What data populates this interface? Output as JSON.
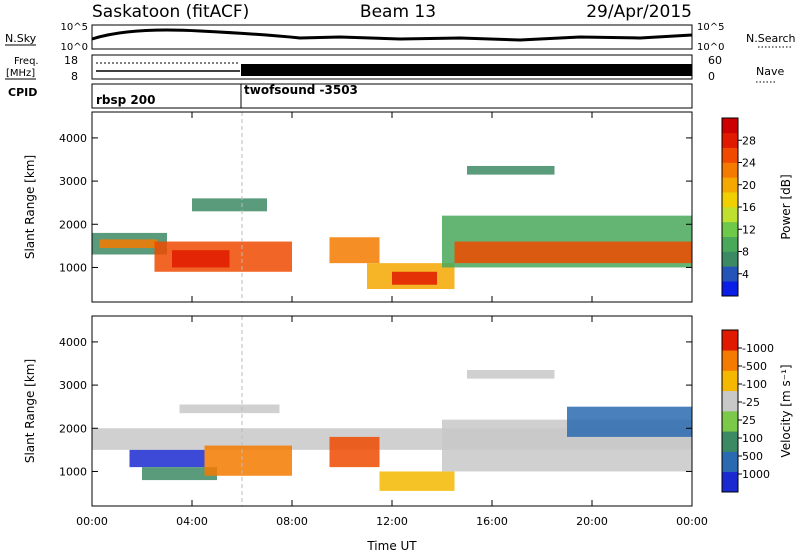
{
  "header": {
    "title": "Saskatoon (fitACF)",
    "beam": "Beam 13",
    "date": "29/Apr/2015"
  },
  "status_panels": {
    "nsky_label": "N.Sky",
    "nsky_ticks": [
      "10^5",
      "10^0"
    ],
    "nsearch_label": "N.Search",
    "nsearch_ticks": [
      "10^5",
      "10^0"
    ],
    "freq_label_1": "Freq.",
    "freq_label_2": "[MHz]",
    "freq_ticks": [
      "18",
      "8"
    ],
    "nave_label": "Nave",
    "nave_ticks": [
      "60",
      "0"
    ],
    "cpid_label": "CPID",
    "cpid_segments": [
      {
        "name": "rbsp 200",
        "start_hour": 0
      },
      {
        "name": "twofsound -3503",
        "start_hour": 6
      }
    ]
  },
  "chart_data": [
    {
      "type": "heatmap",
      "ylabel": "Slant Range [km]",
      "ylim": [
        200,
        4600
      ],
      "yticks": [
        1000,
        2000,
        3000,
        4000
      ],
      "xlim": [
        0,
        24
      ],
      "colorbar": {
        "label": "Power [dB]",
        "ticks": [
          "4",
          "8",
          "12",
          "16",
          "20",
          "24",
          "28"
        ],
        "colors": [
          "#0a1ee6",
          "#2454b8",
          "#3c8a64",
          "#49a85a",
          "#6ec94a",
          "#c0e030",
          "#f0d000",
          "#f5a800",
          "#f47a00",
          "#ef4a00",
          "#e01a00",
          "#cc0000"
        ]
      },
      "bands": [
        {
          "t0": 0.0,
          "t1": 3.0,
          "r0": 1300,
          "r1": 1800,
          "color": "#3c8a64"
        },
        {
          "t0": 0.3,
          "t1": 2.6,
          "r0": 1450,
          "r1": 1650,
          "color": "#f47a00"
        },
        {
          "t0": 2.5,
          "t1": 8.0,
          "r0": 900,
          "r1": 1600,
          "color": "#ef4a00"
        },
        {
          "t0": 3.2,
          "t1": 5.5,
          "r0": 1000,
          "r1": 1400,
          "color": "#e01a00"
        },
        {
          "t0": 9.5,
          "t1": 11.5,
          "r0": 1100,
          "r1": 1700,
          "color": "#f47a00"
        },
        {
          "t0": 11.0,
          "t1": 14.5,
          "r0": 500,
          "r1": 1100,
          "color": "#f5a800"
        },
        {
          "t0": 12.0,
          "t1": 13.8,
          "r0": 600,
          "r1": 900,
          "color": "#e01a00"
        },
        {
          "t0": 14.0,
          "t1": 24.0,
          "r0": 1000,
          "r1": 2200,
          "color": "#49a85a"
        },
        {
          "t0": 14.5,
          "t1": 24.0,
          "r0": 1100,
          "r1": 1600,
          "color": "#ef4a00"
        },
        {
          "t0": 4.0,
          "t1": 7.0,
          "r0": 2300,
          "r1": 2600,
          "color": "#3c8a64"
        },
        {
          "t0": 15.0,
          "t1": 18.5,
          "r0": 3150,
          "r1": 3350,
          "color": "#3c8a64"
        }
      ]
    },
    {
      "type": "heatmap",
      "ylabel": "Slant Range [km]",
      "ylim": [
        200,
        4600
      ],
      "yticks": [
        1000,
        2000,
        3000,
        4000
      ],
      "xlim": [
        0,
        24
      ],
      "xlabel": "Time UT",
      "xticks": [
        "00:00",
        "04:00",
        "08:00",
        "12:00",
        "16:00",
        "20:00",
        "00:00"
      ],
      "colorbar": {
        "label": "Velocity [m s⁻¹]",
        "ticks": [
          "1000",
          "500",
          "100",
          "25",
          "-25",
          "-100",
          "-500",
          "-1000"
        ],
        "colors": [
          "#1a2ad0",
          "#2a6ab0",
          "#3c8a64",
          "#7cc94a",
          "#c8c8c8",
          "#f5b800",
          "#f47a00",
          "#e01a00"
        ]
      },
      "bands": [
        {
          "t0": 0.0,
          "t1": 24.0,
          "r0": 1500,
          "r1": 2000,
          "color": "#c8c8c8"
        },
        {
          "t0": 1.5,
          "t1": 4.5,
          "r0": 1100,
          "r1": 1500,
          "color": "#1a2ad0"
        },
        {
          "t0": 2.0,
          "t1": 5.0,
          "r0": 800,
          "r1": 1100,
          "color": "#3c8a64"
        },
        {
          "t0": 4.5,
          "t1": 8.0,
          "r0": 900,
          "r1": 1600,
          "color": "#f47a00"
        },
        {
          "t0": 9.5,
          "t1": 11.5,
          "r0": 1100,
          "r1": 1800,
          "color": "#ef4a00"
        },
        {
          "t0": 11.5,
          "t1": 14.5,
          "r0": 550,
          "r1": 1000,
          "color": "#f5b800"
        },
        {
          "t0": 14.0,
          "t1": 24.0,
          "r0": 1000,
          "r1": 2200,
          "color": "#c8c8c8"
        },
        {
          "t0": 19.0,
          "t1": 24.0,
          "r0": 1800,
          "r1": 2500,
          "color": "#2a6ab0"
        },
        {
          "t0": 3.5,
          "t1": 7.5,
          "r0": 2350,
          "r1": 2550,
          "color": "#c8c8c8"
        },
        {
          "t0": 15.0,
          "t1": 18.5,
          "r0": 3150,
          "r1": 3350,
          "color": "#c8c8c8"
        }
      ]
    }
  ]
}
